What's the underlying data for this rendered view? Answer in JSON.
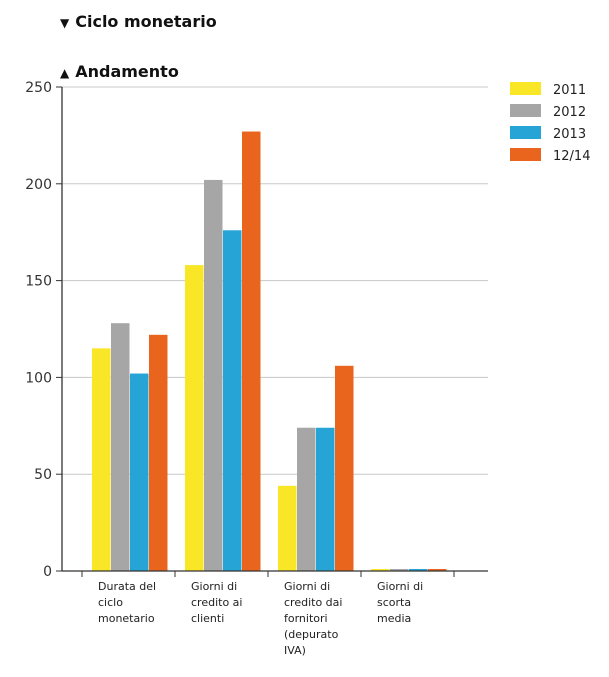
{
  "header": {
    "ciclo_arrow": "▼",
    "ciclo_title": "Ciclo monetario",
    "andamento_arrow": "▲",
    "andamento_title": "Andamento"
  },
  "colors": {
    "2011": "#f8e627",
    "2012": "#a6a6a6",
    "2013": "#27a4d6",
    "12/14": "#e9651d",
    "grid": "#c8c8c8",
    "axis": "#333333"
  },
  "chart_data": {
    "type": "bar",
    "categories": [
      [
        "Durata del",
        "ciclo",
        "monetario"
      ],
      [
        "Giorni di",
        "credito ai",
        "clienti"
      ],
      [
        "Giorni di",
        "credito dai",
        "fornitori",
        "(depurato",
        "IVA)"
      ],
      [
        "Giorni di",
        "scorta",
        "media"
      ]
    ],
    "series": [
      {
        "name": "2011",
        "values": [
          115,
          158,
          44,
          0
        ]
      },
      {
        "name": "2012",
        "values": [
          128,
          202,
          74,
          0
        ]
      },
      {
        "name": "2013",
        "values": [
          102,
          176,
          74,
          0
        ]
      },
      {
        "name": "12/14",
        "values": [
          122,
          227,
          106,
          0
        ]
      }
    ],
    "ylim": [
      0,
      250
    ],
    "yticks": [
      0,
      50,
      100,
      150,
      200,
      250
    ],
    "title": "",
    "xlabel": "",
    "ylabel": "",
    "grid": true,
    "legend": "top-right"
  }
}
